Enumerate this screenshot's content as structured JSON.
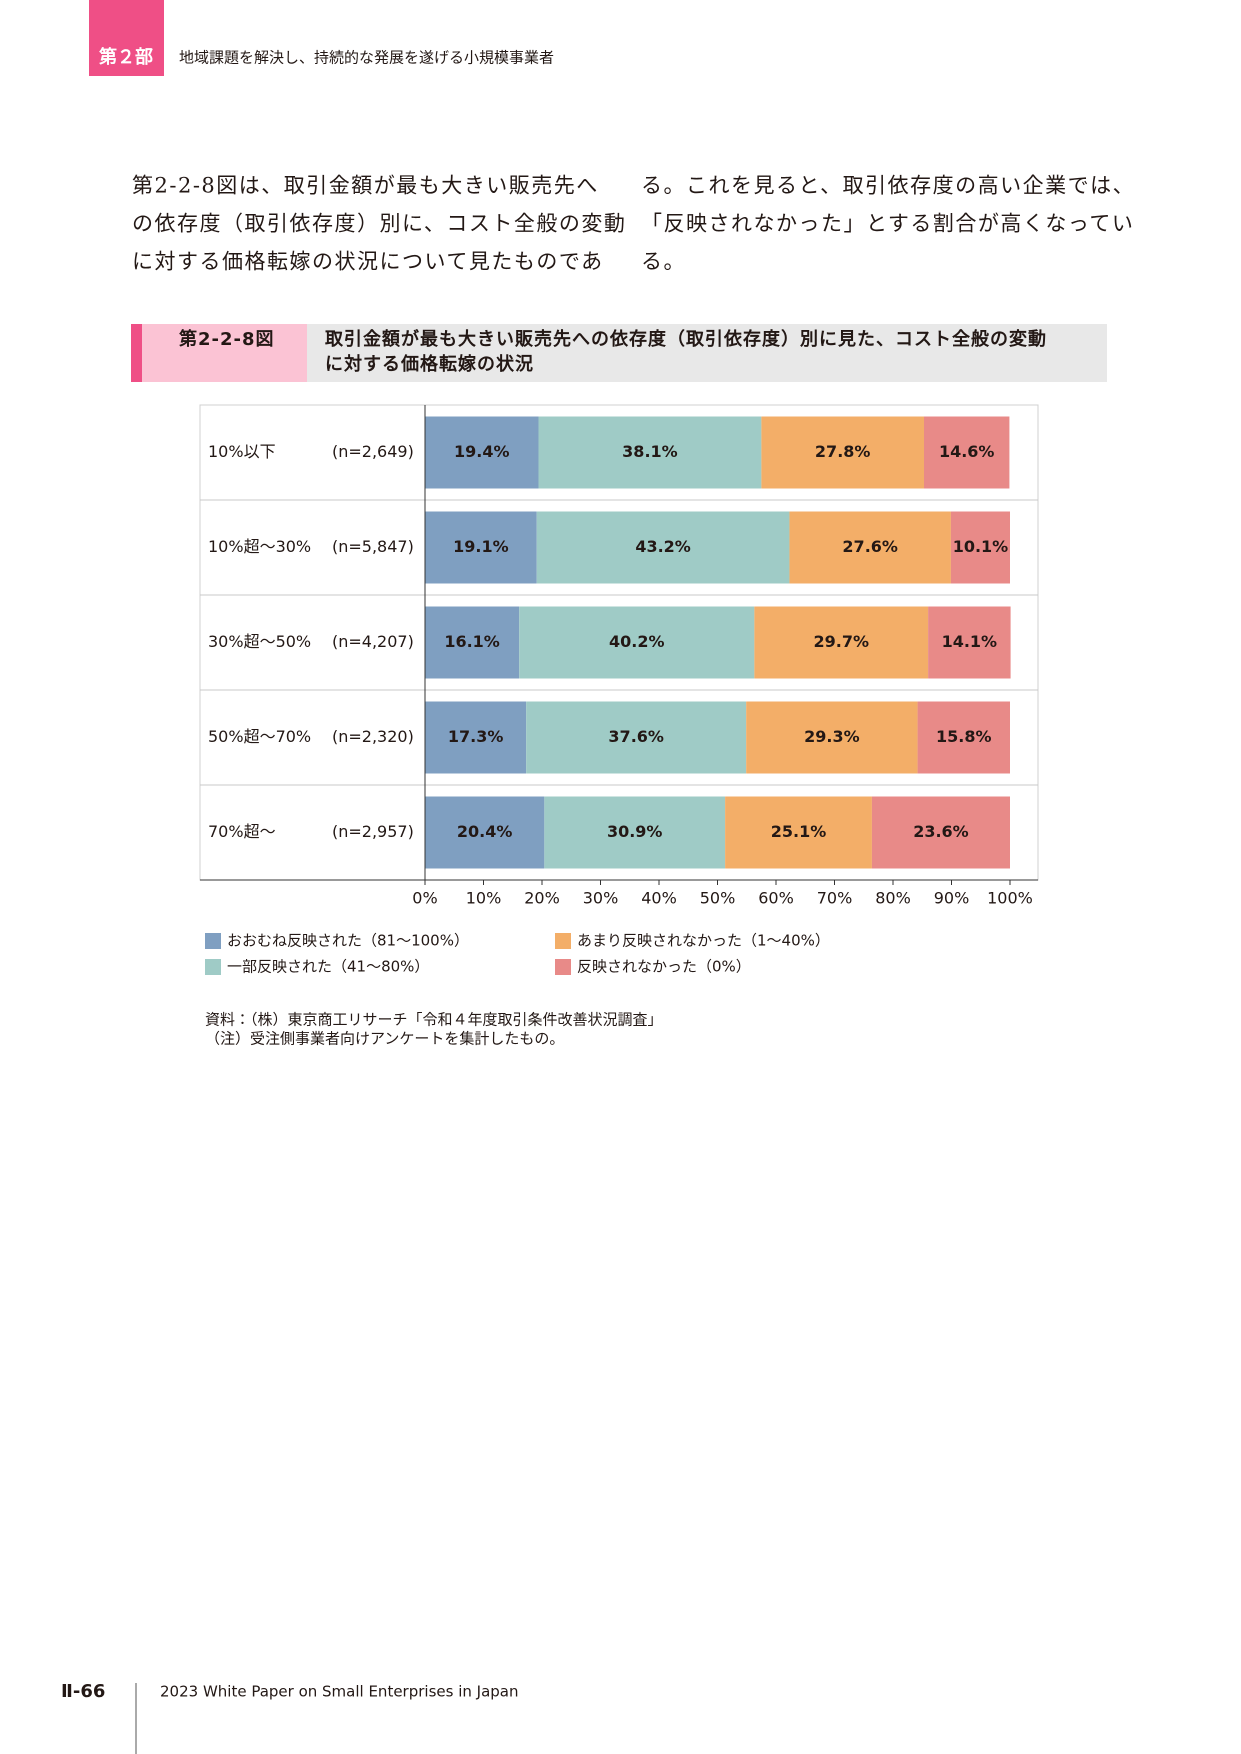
{
  "header": {
    "part": "第２部",
    "title": "地域課題を解決し、持続的な発展を遂げる小規模事業者"
  },
  "body": {
    "left_lines": [
      "第2-2-8図は、取引金額が最も大きい販売先へ",
      "の依存度（取引依存度）別に、コスト全般の変動",
      "に対する価格転嫁の状況について見たものであ"
    ],
    "right_lines": [
      "る。これを見ると、取引依存度の高い企業では、",
      "「反映されなかった」とする割合が高くなってい",
      "る。"
    ]
  },
  "figure": {
    "label": "第2-2-8図",
    "title_lines": [
      "取引金額が最も大きい販売先への依存度（取引依存度）別に見た、コスト全般の変動",
      "に対する価格転嫁の状況"
    ]
  },
  "chart_data": {
    "type": "bar",
    "orientation": "horizontal",
    "stacked": true,
    "categories": [
      "10%以下",
      "10%超～30%",
      "30%超～50%",
      "50%超～70%",
      "70%超～"
    ],
    "sample_sizes": [
      "(n=2,649)",
      "(n=5,847)",
      "(n=4,207)",
      "(n=2,320)",
      "(n=2,957)"
    ],
    "series": [
      {
        "name": "おおむね反映された（81～100%）",
        "color": "#7f9fc1",
        "values": [
          19.4,
          19.1,
          16.1,
          17.3,
          20.4
        ],
        "value_labels": [
          "19.4%",
          "19.1%",
          "16.1%",
          "17.3%",
          "20.4%"
        ]
      },
      {
        "name": "一部反映された（41～80%）",
        "color": "#9fcbc6",
        "values": [
          38.1,
          43.2,
          40.2,
          37.6,
          30.9
        ],
        "value_labels": [
          "38.1%",
          "43.2%",
          "40.2%",
          "37.6%",
          "30.9%"
        ]
      },
      {
        "name": "あまり反映されなかった（1～40%）",
        "color": "#f3ae68",
        "values": [
          27.8,
          27.6,
          29.7,
          29.3,
          25.1
        ],
        "value_labels": [
          "27.8%",
          "27.6%",
          "29.7%",
          "29.3%",
          "25.1%"
        ]
      },
      {
        "name": "反映されなかった（0%）",
        "color": "#e88a88",
        "values": [
          14.6,
          10.1,
          14.1,
          15.8,
          23.6
        ],
        "value_labels": [
          "14.6%",
          "10.1%",
          "14.1%",
          "15.8%",
          "23.6%"
        ]
      }
    ],
    "xlim": [
      0,
      100
    ],
    "xticks": [
      {
        "value": 0,
        "label": "0%"
      },
      {
        "value": 10,
        "label": "10%"
      },
      {
        "value": 20,
        "label": "20%"
      },
      {
        "value": 30,
        "label": "30%"
      },
      {
        "value": 40,
        "label": "40%"
      },
      {
        "value": 50,
        "label": "50%"
      },
      {
        "value": 60,
        "label": "60%"
      },
      {
        "value": 70,
        "label": "70%"
      },
      {
        "value": 80,
        "label": "80%"
      },
      {
        "value": 90,
        "label": "90%"
      },
      {
        "value": 100,
        "label": "100%"
      }
    ]
  },
  "notes": [
    "資料：（株）東京商工リサーチ「令和４年度取引条件改善状況調査」",
    "（注）受注側事業者向けアンケートを集計したもの。"
  ],
  "footer": {
    "page": "Ⅱ-66",
    "publication": "2023 White Paper on Small Enterprises in Japan"
  }
}
